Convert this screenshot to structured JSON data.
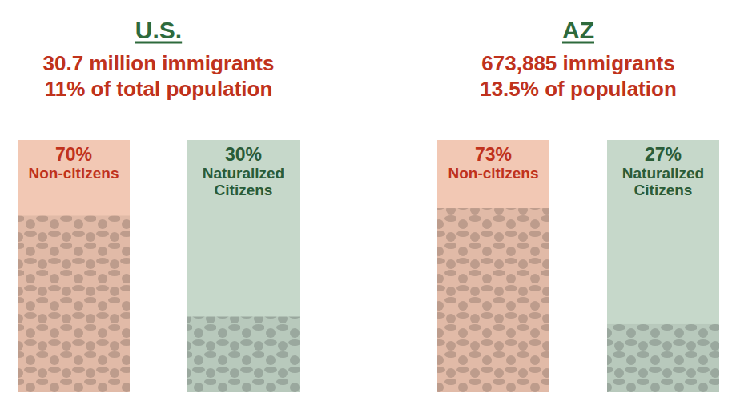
{
  "chart_data": [
    {
      "type": "bar",
      "title": "U.S.",
      "subtitle": [
        "30.7 million immigrants",
        "11% of total population"
      ],
      "categories": [
        "Non-citizens",
        "Naturalized Citizens"
      ],
      "values": [
        70,
        30
      ],
      "value_labels": [
        "70%",
        "30%"
      ],
      "colors": [
        "#f2c8b4",
        "#c6d8ca"
      ],
      "ylim": [
        0,
        100
      ],
      "data_labels": true,
      "tick_labels": false
    },
    {
      "type": "bar",
      "title": "AZ",
      "subtitle": [
        "673,885 immigrants",
        "13.5% of population"
      ],
      "categories": [
        "Non-citizens",
        "Naturalized Citizens"
      ],
      "values": [
        73,
        27
      ],
      "value_labels": [
        "73%",
        "27%"
      ],
      "colors": [
        "#f2c8b4",
        "#c6d8ca"
      ],
      "ylim": [
        0,
        100
      ],
      "data_labels": true,
      "tick_labels": false
    }
  ]
}
